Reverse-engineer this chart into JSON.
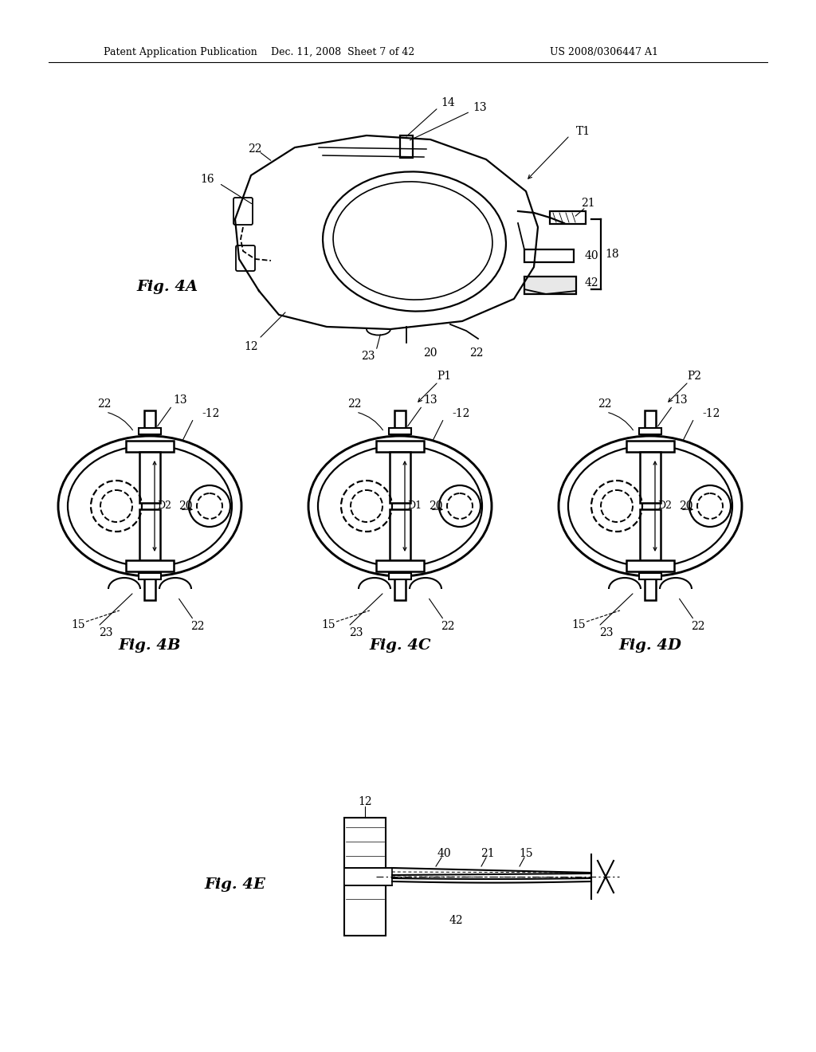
{
  "bg_color": "#ffffff",
  "line_color": "#000000",
  "header_left": "Patent Application Publication",
  "header_mid": "Dec. 11, 2008  Sheet 7 of 42",
  "header_right": "US 2008/0306447 A1"
}
